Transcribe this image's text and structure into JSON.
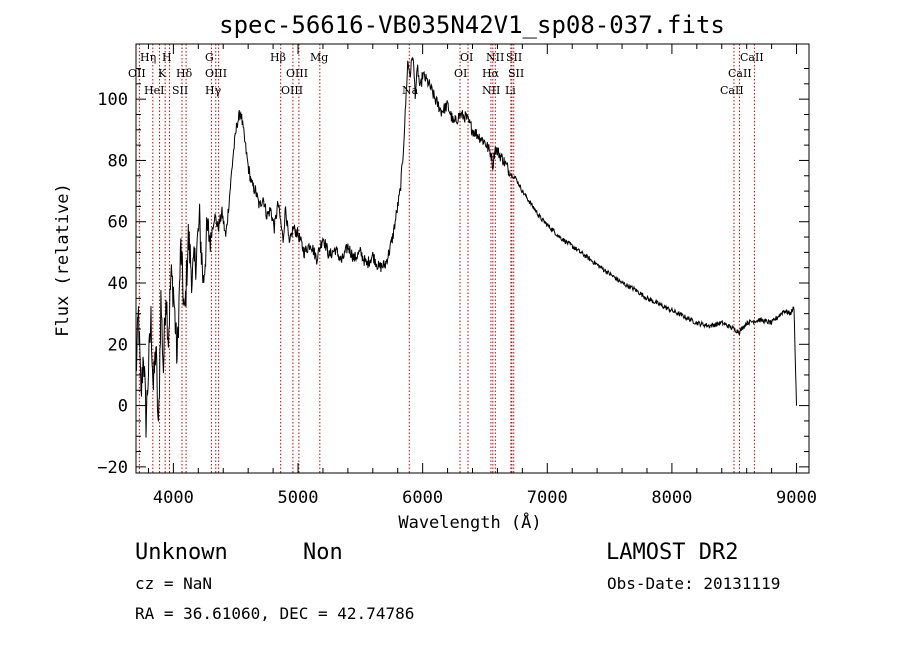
{
  "chart_data": {
    "type": "line",
    "title": "spec-56616-VB035N42V1_sp08-037.fits",
    "xlabel": "Wavelength (Å)",
    "ylabel": "Flux (relative)",
    "xlim": [
      3700,
      9100
    ],
    "ylim": [
      -22,
      118
    ],
    "xticks": [
      4000,
      5000,
      6000,
      7000,
      8000,
      9000
    ],
    "xtick_labels": [
      "4000",
      "5000",
      "6000",
      "7000",
      "8000",
      "9000"
    ],
    "yticks": [
      -20,
      0,
      20,
      40,
      60,
      80,
      100
    ],
    "ytick_labels": [
      "−20",
      "0",
      "20",
      "40",
      "60",
      "80",
      "100"
    ],
    "grid": false,
    "series": [
      {
        "x": [
          3700,
          3720,
          3740,
          3760,
          3780,
          3800,
          3820,
          3840,
          3860,
          3880,
          3900,
          3920,
          3940,
          3960,
          3980,
          4000,
          4030,
          4060,
          4090,
          4120,
          4150,
          4180,
          4210,
          4240,
          4270,
          4300,
          4330,
          4360,
          4390,
          4420,
          4450,
          4480,
          4510,
          4540,
          4560,
          4580,
          4600,
          4630,
          4660,
          4690,
          4720,
          4750,
          4780,
          4810,
          4840,
          4860,
          4880,
          4900,
          4930,
          4960,
          5000,
          5050,
          5100,
          5150,
          5200,
          5250,
          5300,
          5350,
          5400,
          5450,
          5500,
          5550,
          5600,
          5650,
          5700,
          5730,
          5760,
          5780,
          5800,
          5820,
          5840,
          5860,
          5880,
          5900,
          5920,
          5940,
          5960,
          5980,
          6000,
          6050,
          6100,
          6150,
          6200,
          6250,
          6300,
          6350,
          6400,
          6450,
          6500,
          6550,
          6563,
          6580,
          6600,
          6650,
          6700,
          6750,
          6800,
          6850,
          6900,
          6950,
          7000,
          7100,
          7200,
          7300,
          7400,
          7500,
          7600,
          7700,
          7800,
          7900,
          8000,
          8100,
          8200,
          8300,
          8400,
          8500,
          8540,
          8600,
          8700,
          8800,
          8850,
          8900,
          8950,
          8980,
          9000
        ],
        "y": [
          10,
          30,
          2,
          18,
          -5,
          12,
          28,
          5,
          20,
          -10,
          35,
          12,
          38,
          22,
          42,
          38,
          15,
          52,
          28,
          55,
          42,
          48,
          60,
          40,
          57,
          55,
          62,
          58,
          63,
          55,
          68,
          82,
          92,
          96,
          90,
          84,
          78,
          72,
          70,
          65,
          68,
          62,
          64,
          58,
          66,
          60,
          54,
          65,
          52,
          58,
          56,
          50,
          53,
          48,
          55,
          49,
          51,
          47,
          52,
          48,
          50,
          46,
          49,
          45,
          46,
          50,
          55,
          60,
          65,
          70,
          80,
          95,
          112,
          108,
          115,
          102,
          110,
          103,
          108,
          105,
          100,
          96,
          98,
          92,
          95,
          94,
          90,
          88,
          86,
          82,
          78,
          84,
          83,
          80,
          76,
          74,
          70,
          67,
          64,
          61,
          59,
          55,
          52,
          49,
          46,
          43,
          40,
          38,
          35,
          33,
          31,
          29,
          27,
          26,
          27,
          25,
          24,
          27,
          28,
          27,
          29,
          31,
          30,
          32,
          0
        ]
      }
    ],
    "lines": [
      {
        "label": "OII",
        "x": 3727
      },
      {
        "label": "Hη",
        "x": 3835
      },
      {
        "label": "H",
        "x": 3889
      },
      {
        "label": "K",
        "x": 3934
      },
      {
        "label": "HeI",
        "x": 3969
      },
      {
        "label": "SII",
        "x": 4069
      },
      {
        "label": "Hδ",
        "x": 4102
      },
      {
        "label": "G",
        "x": 4305
      },
      {
        "label": "OIII",
        "x": 4340
      },
      {
        "label": "Hγ",
        "x": 4363
      },
      {
        "label": "Hβ",
        "x": 4861
      },
      {
        "label": "OIII",
        "x": 4959
      },
      {
        "label": "OIII",
        "x": 5007
      },
      {
        "label": "Mg",
        "x": 5175
      },
      {
        "label": "Na",
        "x": 5893
      },
      {
        "label": "OI",
        "x": 6300
      },
      {
        "label": "OI",
        "x": 6364
      },
      {
        "label": "NII",
        "x": 6548
      },
      {
        "label": "Hα",
        "x": 6563
      },
      {
        "label": "NII",
        "x": 6583
      },
      {
        "label": "SII",
        "x": 6716
      },
      {
        "label": "Li",
        "x": 6708
      },
      {
        "label": "SII",
        "x": 6731
      },
      {
        "label": "CaII",
        "x": 8498
      },
      {
        "label": "CaII",
        "x": 8542
      },
      {
        "label": "CaII",
        "x": 8662
      }
    ]
  },
  "info": {
    "object_class": "Unknown",
    "subclass": "Non",
    "survey": "LAMOST DR2",
    "redshift": "cz = NaN",
    "obs_date": "Obs-Date: 20131119",
    "coords": "RA =  36.61060, DEC =  42.74786"
  },
  "colors": {
    "line": "#000000",
    "marker": "#cc0000",
    "text": "#000000",
    "background": "#ffffff"
  }
}
